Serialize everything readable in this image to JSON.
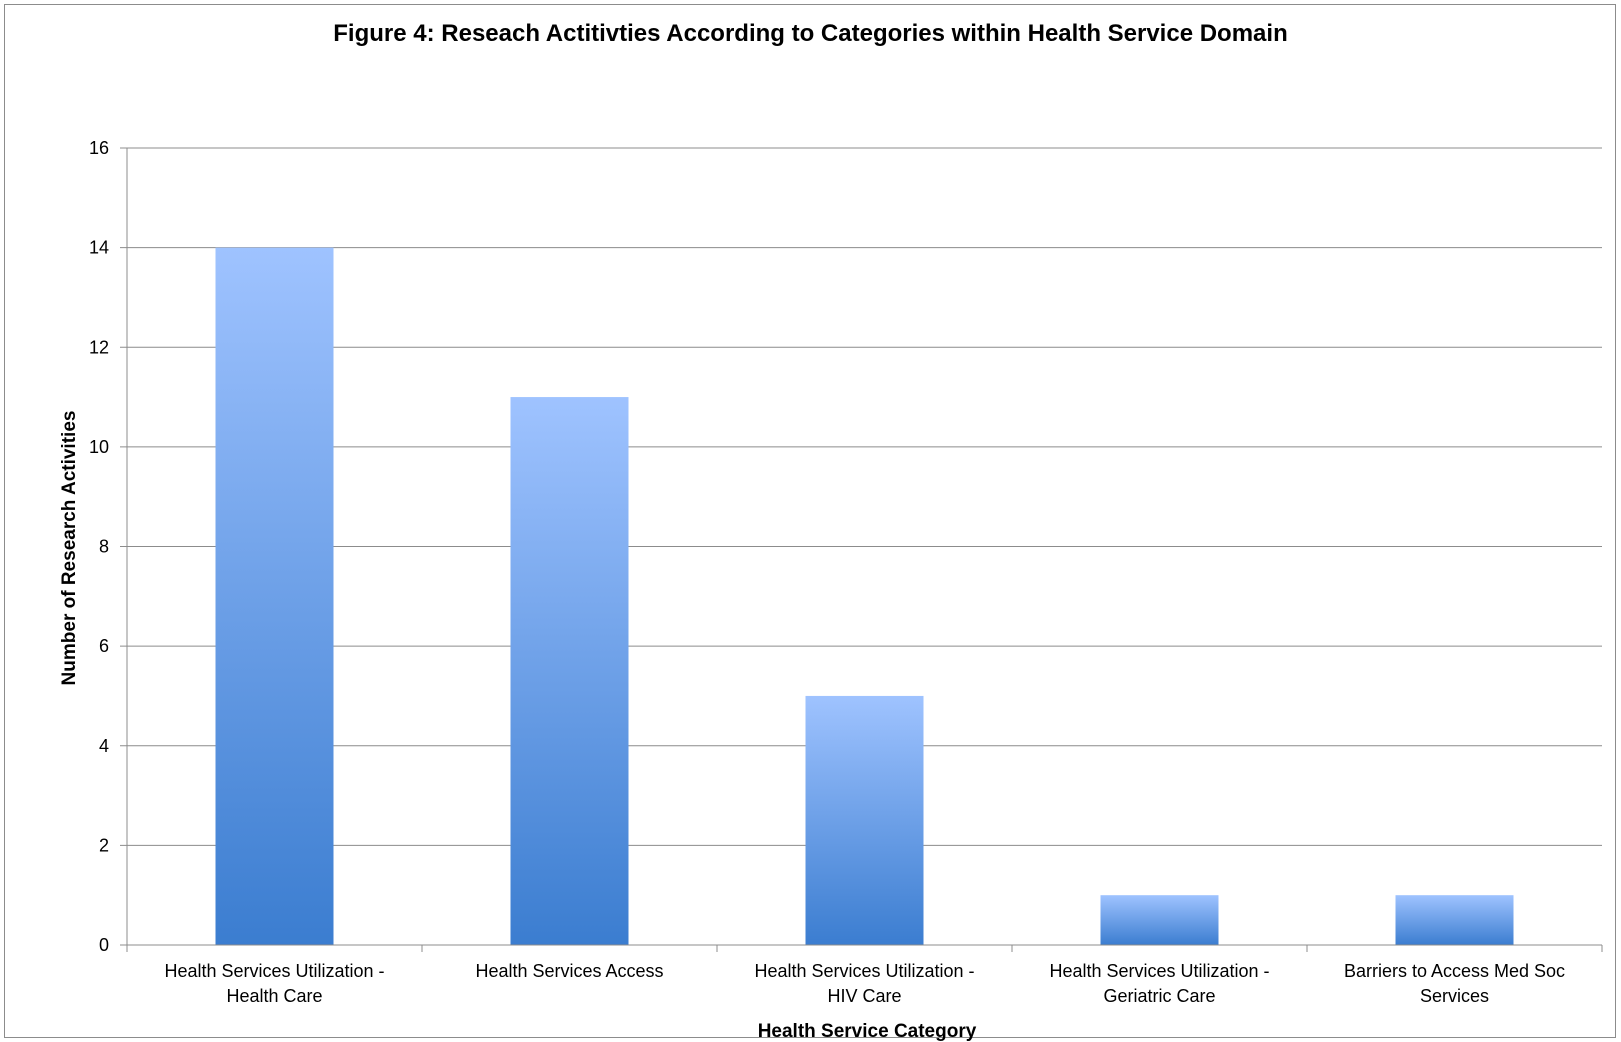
{
  "chart_data": {
    "type": "bar",
    "title": "Figure 4: Reseach Actitivties According to Categories within Health Service Domain",
    "xlabel": "Health Service Category",
    "ylabel": "Number of Research Activities",
    "categories": [
      [
        "Health Services Utilization -",
        "Health Care"
      ],
      [
        "Health Services Access"
      ],
      [
        "Health Services Utilization -",
        "HIV Care"
      ],
      [
        "Health Services Utilization -",
        "Geriatric Care"
      ],
      [
        "Barriers to Access Med Soc",
        "Services"
      ]
    ],
    "values": [
      14,
      11,
      5,
      1,
      1
    ],
    "ylim": [
      0,
      16
    ],
    "yticks": [
      0,
      2,
      4,
      6,
      8,
      10,
      12,
      14,
      16
    ],
    "grid": true,
    "legend": "none",
    "colors": {
      "bar_top": "#9fc3ff",
      "bar_bottom": "#3b7dd0",
      "grid": "#8c8c8c"
    }
  }
}
